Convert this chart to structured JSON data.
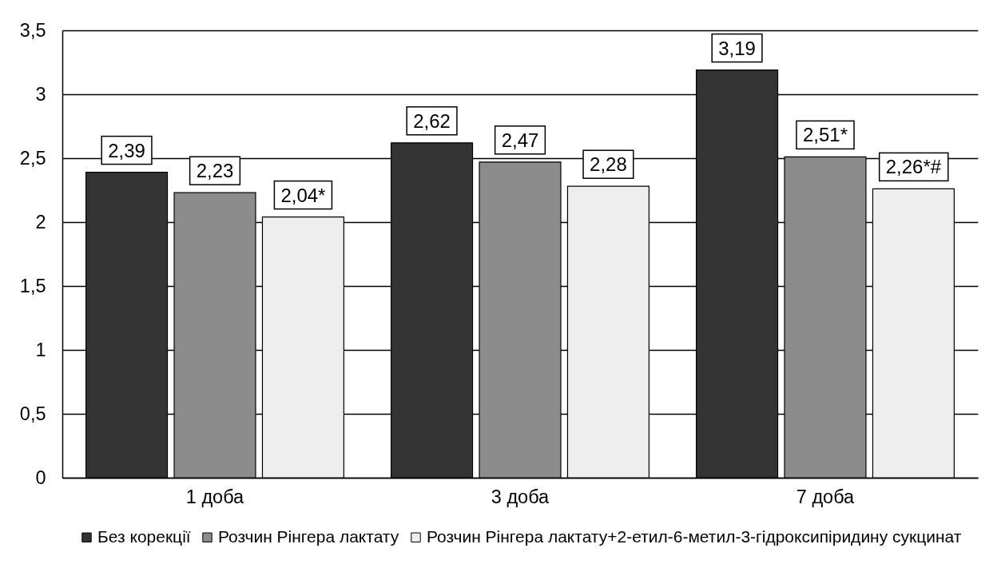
{
  "chart_data": {
    "type": "bar",
    "categories": [
      "1 доба",
      "3 доба",
      "7 доба"
    ],
    "series": [
      {
        "name": "Без корекції",
        "color": "#333333",
        "values": [
          2.39,
          2.62,
          3.19
        ],
        "value_labels": [
          "2,39",
          "2,62",
          "3,19"
        ]
      },
      {
        "name": "Розчин Рінгера лактату",
        "color": "#8c8c8c",
        "values": [
          2.23,
          2.47,
          2.51
        ],
        "value_labels": [
          "2,23",
          "2,47",
          "2,51*"
        ]
      },
      {
        "name": "Розчин Рінгера лактату+2-етил-6-метил-3-гідроксипіридину сукцинат",
        "color": "#eeeeee",
        "values": [
          2.04,
          2.28,
          2.26
        ],
        "value_labels": [
          "2,04*",
          "2,28",
          "2,26*#"
        ]
      }
    ],
    "ylim": [
      0,
      3.5
    ],
    "yticks": [
      0,
      {
        "value": 0.5,
        "label": "0,5"
      },
      1,
      {
        "value": 1.5,
        "label": "1,5"
      },
      2,
      {
        "value": 2.5,
        "label": "2,5"
      },
      3,
      {
        "value": 3.5,
        "label": "3,5"
      }
    ],
    "grid": "y",
    "legend": "bottom"
  }
}
